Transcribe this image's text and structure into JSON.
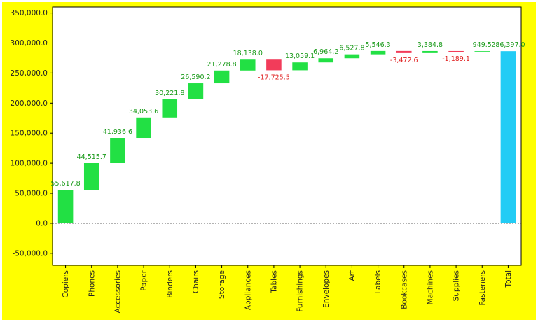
{
  "chart_data": {
    "type": "bar",
    "subtype": "waterfall",
    "title": "",
    "xlabel": "",
    "ylabel": "",
    "categories": [
      "Copiers",
      "Phones",
      "Accessories",
      "Paper",
      "Binders",
      "Chairs",
      "Storage",
      "Appliances",
      "Tables",
      "Furnishings",
      "Envelopes",
      "Art",
      "Labels",
      "Bookcases",
      "Machines",
      "Supplies",
      "Fasteners",
      "Total"
    ],
    "values": [
      55617.8,
      44515.7,
      41936.6,
      34053.6,
      30221.8,
      26590.2,
      21278.8,
      18138.0,
      -17725.5,
      13059.1,
      6964.2,
      6527.8,
      5546.3,
      -3472.6,
      3384.8,
      -1189.1,
      949.5,
      286397.0
    ],
    "labels": [
      "55,617.8",
      "44,515.7",
      "41,936.6",
      "34,053.6",
      "30,221.8",
      "26,590.2",
      "21,278.8",
      "18,138.0",
      "-17,725.5",
      "13,059.1",
      "6,964.2",
      "6,527.8",
      "5,546.3",
      "-3,472.6",
      "3,384.8",
      "-1,189.1",
      "949.5",
      "286,397.0"
    ],
    "total": 286397.0,
    "ylim": [
      -70000,
      360000
    ],
    "yticks": [
      -50000,
      0,
      50000,
      100000,
      150000,
      200000,
      250000,
      300000,
      350000
    ],
    "ytick_labels": [
      "-50,000.0",
      "0.0",
      "50,000.0",
      "100,000.0",
      "150,000.0",
      "200,000.0",
      "250,000.0",
      "300,000.0",
      "350,000.0"
    ],
    "grid": false,
    "zero_line": "dotted",
    "colors": {
      "increase": "#22e044",
      "decrease": "#f23c5a",
      "total": "#22ccf5",
      "increase_label": "#1a9a1a",
      "decrease_label": "#e02020",
      "background": "#ffff00"
    }
  }
}
